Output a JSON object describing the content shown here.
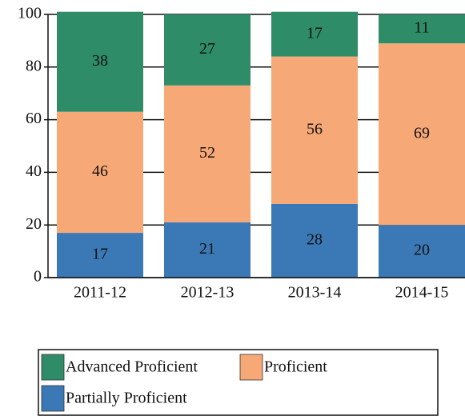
{
  "chart_data": {
    "type": "stacked_bar",
    "categories": [
      "2011-12",
      "2012-13",
      "2013-14",
      "2014-15"
    ],
    "series": [
      {
        "name": "Partially Proficient",
        "color": "#3b79b6",
        "values": [
          17,
          21,
          28,
          20
        ]
      },
      {
        "name": "Proficient",
        "color": "#f7a877",
        "values": [
          46,
          52,
          56,
          69
        ]
      },
      {
        "name": "Advanced Proficient",
        "color": "#2f8c68",
        "values": [
          38,
          27,
          17,
          11
        ]
      }
    ],
    "ylim": [
      0,
      100
    ],
    "yticks": [
      0,
      20,
      40,
      60,
      80,
      100
    ],
    "grid": true
  }
}
